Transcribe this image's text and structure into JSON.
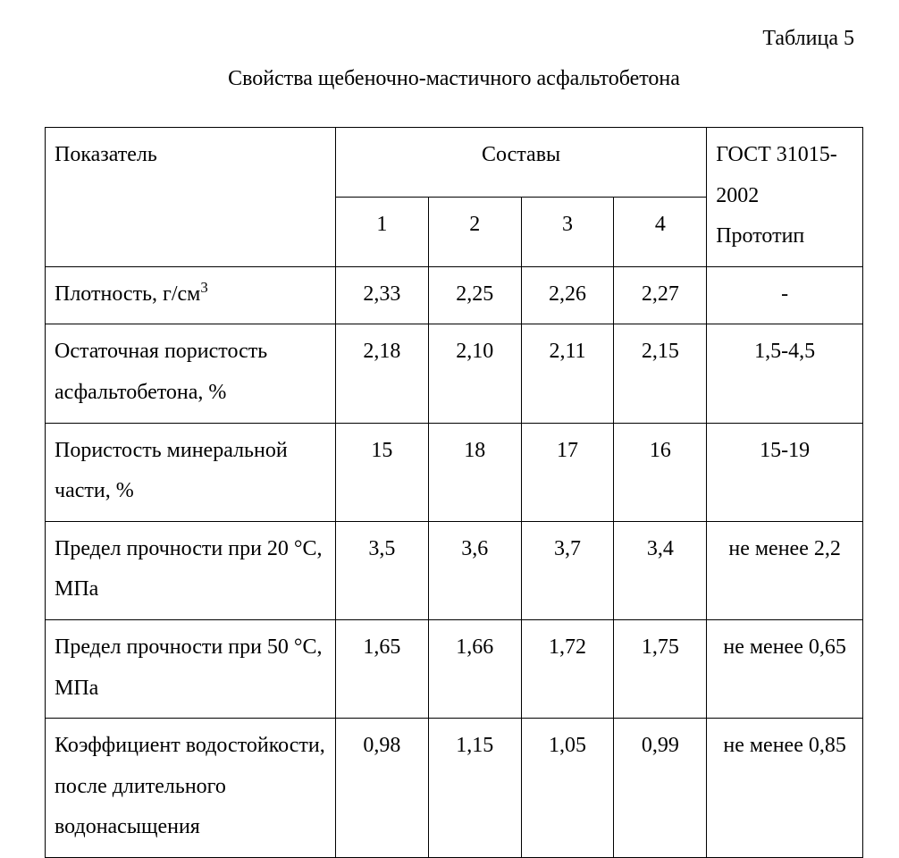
{
  "table_label": "Таблица 5",
  "title": "Свойства щебеночно-мастичного асфальтобетона",
  "background_color": "#ffffff",
  "text_color": "#000000",
  "font_family": "Times New Roman",
  "base_font_size_pt": 18,
  "header": {
    "c0": "Показатель",
    "c_mid": "Составы",
    "c_last_line1": "ГОСТ 31015-",
    "c_last_line2": "2002",
    "c_last_line3": "Прототип",
    "sub": [
      "1",
      "2",
      "3",
      "4"
    ]
  },
  "rows": [
    {
      "label_html": "Плотность, г/см<sup>3</sup>",
      "v": [
        "2,33",
        "2,25",
        "2,26",
        "2,27"
      ],
      "std": "-"
    },
    {
      "label_html": "Остаточная пористость асфальтобетона, %",
      "v": [
        "2,18",
        "2,10",
        "2,11",
        "2,15"
      ],
      "std": "1,5-4,5"
    },
    {
      "label_html": "Пористость минеральной части, %",
      "v": [
        "15",
        "18",
        "17",
        "16"
      ],
      "std": "15-19"
    },
    {
      "label_html": "Предел прочности при 20 °С, МПа",
      "v": [
        "3,5",
        "3,6",
        "3,7",
        "3,4"
      ],
      "std": "не менее 2,2"
    },
    {
      "label_html": "Предел прочности при 50 °С, МПа",
      "v": [
        "1,65",
        "1,66",
        "1,72",
        "1,75"
      ],
      "std": "не менее 0,65"
    },
    {
      "label_html": "Коэффициент водостойкости, после длительного водонасыщения",
      "v": [
        "0,98",
        "1,15",
        "1,05",
        "0,99"
      ],
      "std": "не менее 0,85"
    }
  ]
}
